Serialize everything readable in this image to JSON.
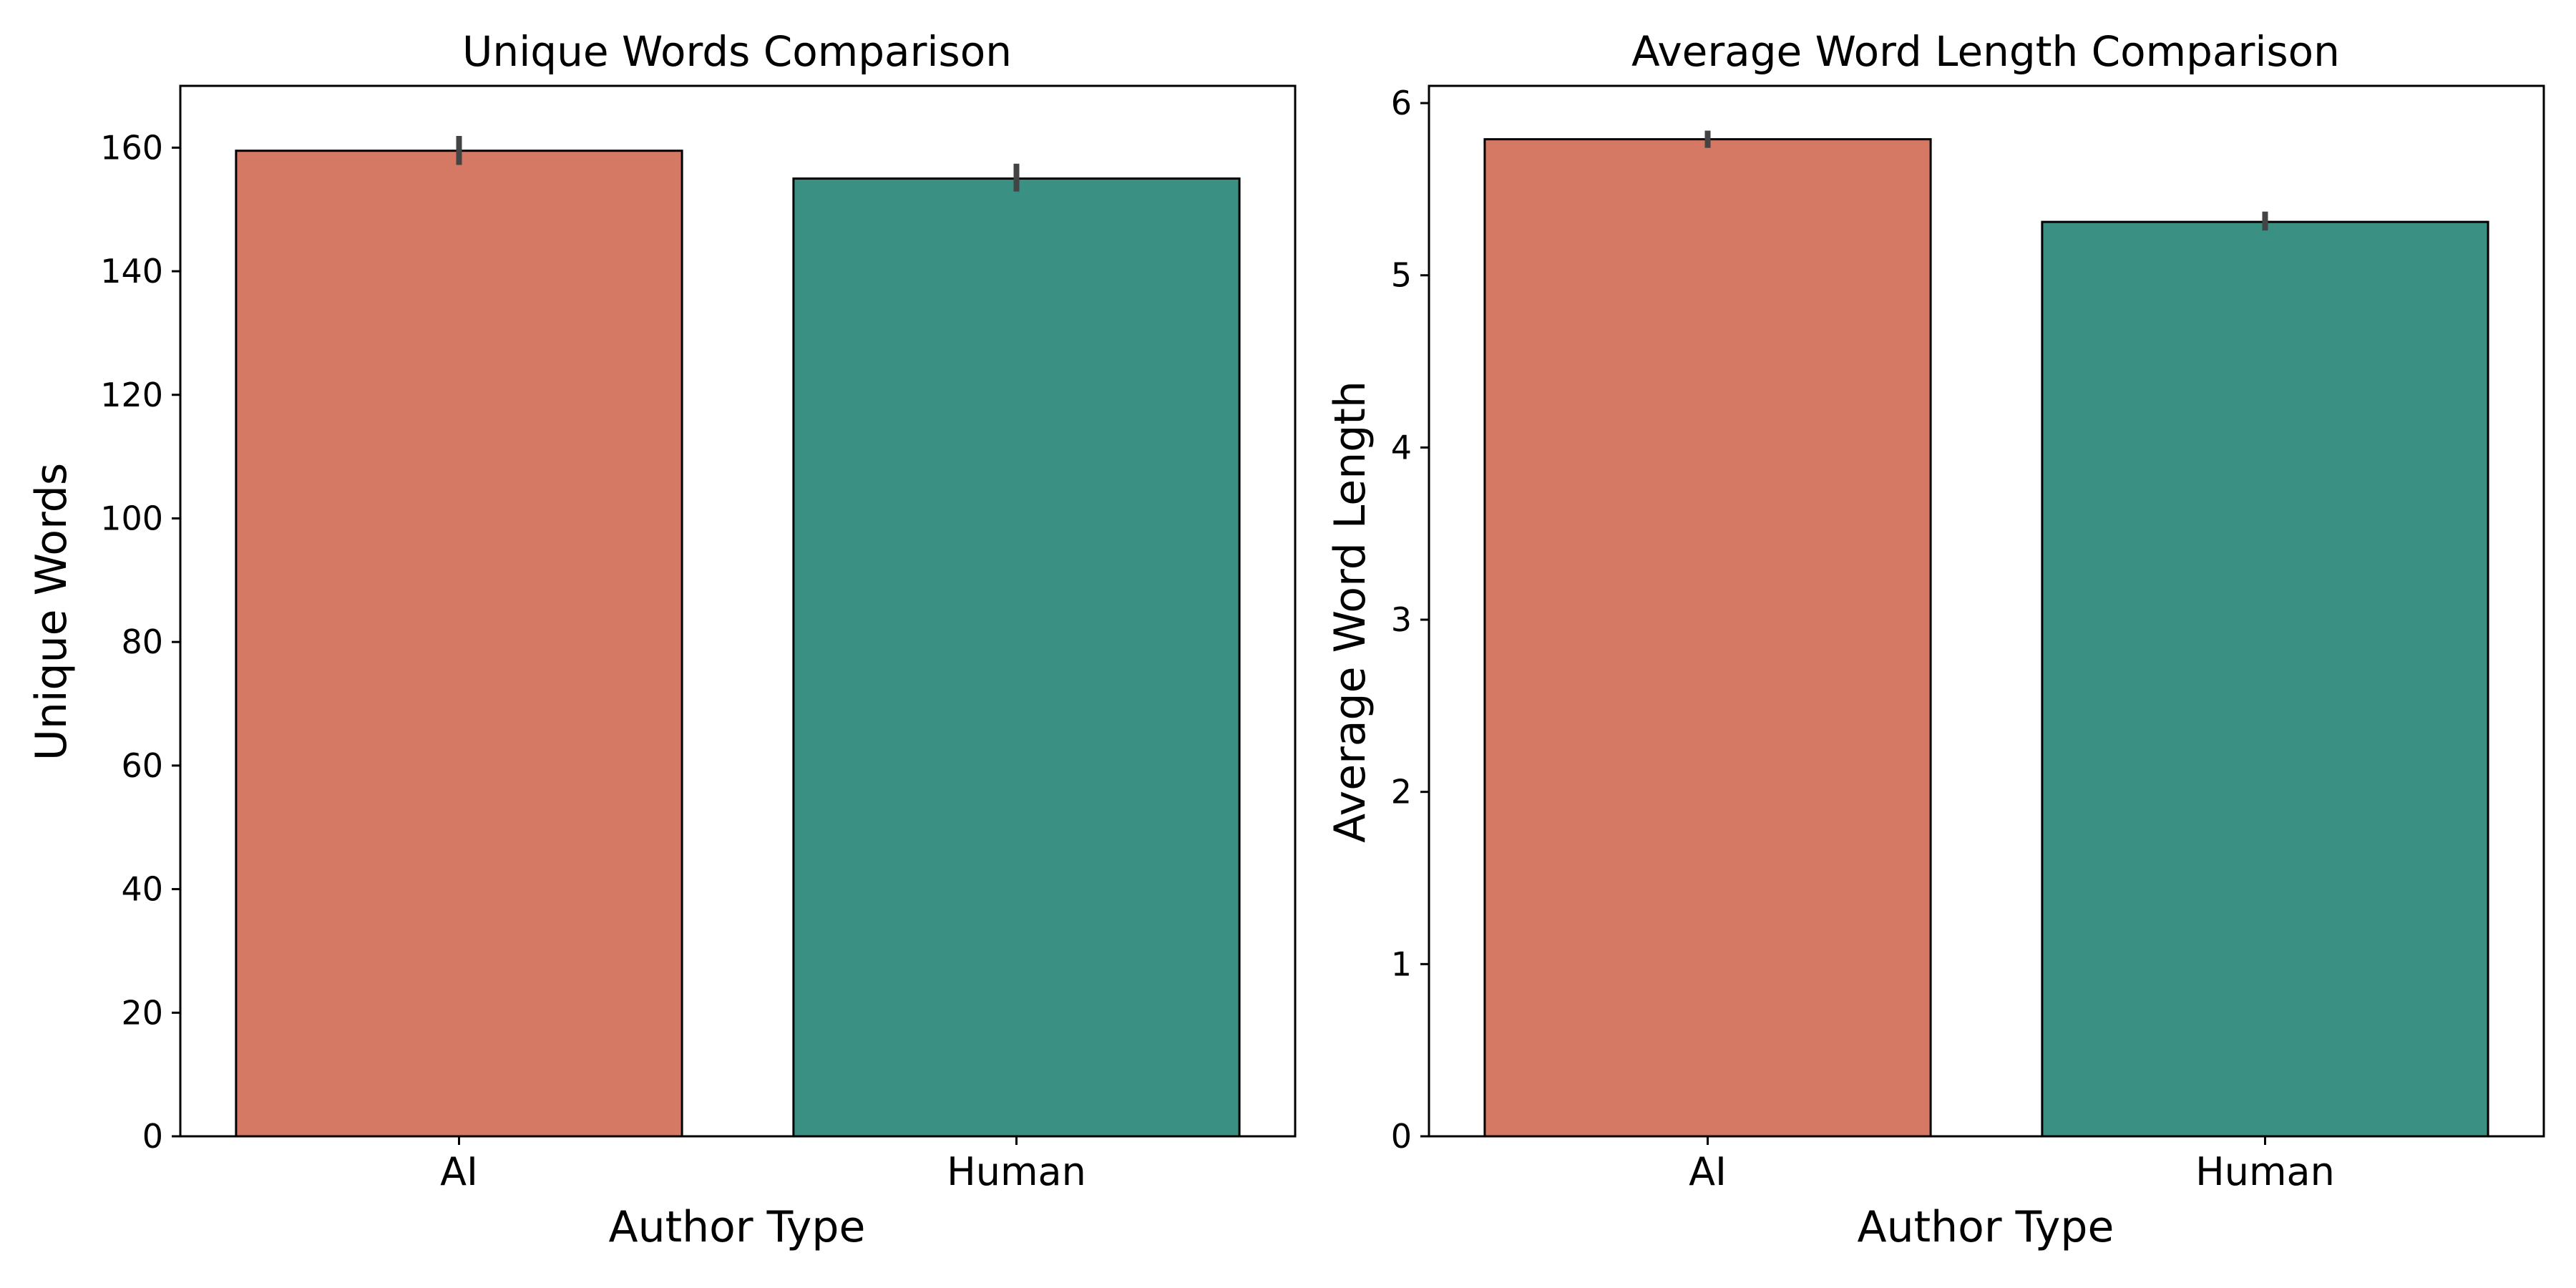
{
  "chart_data": [
    {
      "type": "bar",
      "title": "Unique Words Comparison",
      "xlabel": "Author Type",
      "ylabel": "Unique Words",
      "categories": [
        "AI",
        "Human"
      ],
      "values": [
        159.5,
        155
      ],
      "error": [
        [
          157.2,
          161.9
        ],
        [
          152.9,
          157.4
        ]
      ],
      "ylim": [
        0,
        170
      ],
      "yticks": [
        0,
        20,
        40,
        60,
        80,
        100,
        120,
        140,
        160
      ],
      "ytick_labels": [
        "0",
        "20",
        "40",
        "60",
        "80",
        "100",
        "120",
        "140",
        "160"
      ],
      "colors": [
        "#d57965",
        "#3a9083"
      ],
      "grid": false,
      "legend": "none"
    },
    {
      "type": "bar",
      "title": "Average Word Length Comparison",
      "xlabel": "Author Type",
      "ylabel": "Average Word Length",
      "categories": [
        "AI",
        "Human"
      ],
      "values": [
        5.79,
        5.31
      ],
      "error": [
        [
          5.74,
          5.84
        ],
        [
          5.26,
          5.37
        ]
      ],
      "ylim": [
        0,
        6.1
      ],
      "yticks": [
        0,
        1,
        2,
        3,
        4,
        5,
        6
      ],
      "ytick_labels": [
        "0",
        "1",
        "2",
        "3",
        "4",
        "5",
        "6"
      ],
      "colors": [
        "#d57965",
        "#3a9083"
      ],
      "grid": false,
      "legend": "none"
    }
  ]
}
